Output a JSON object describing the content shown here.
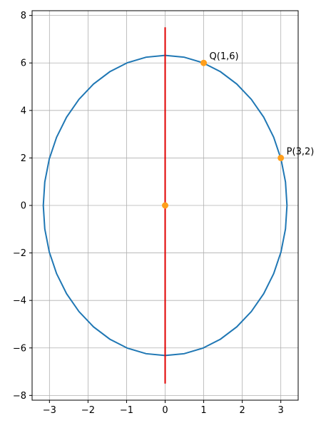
{
  "chart_data": {
    "type": "scatter",
    "title": "",
    "xlabel": "",
    "ylabel": "",
    "xlim": [
      -3.45,
      3.45
    ],
    "ylim": [
      -8.2,
      8.2
    ],
    "grid": true,
    "x_ticks": [
      -3,
      -2,
      -1,
      0,
      1,
      2,
      3
    ],
    "x_tick_labels": [
      "−3",
      "−2",
      "−1",
      "0",
      "1",
      "2",
      "3"
    ],
    "y_ticks": [
      -8,
      -6,
      -4,
      -2,
      0,
      2,
      4,
      6,
      8
    ],
    "y_tick_labels": [
      "−8",
      "−6",
      "−4",
      "−2",
      "0",
      "2",
      "4",
      "6",
      "8"
    ],
    "ellipse": {
      "center": [
        0,
        0
      ],
      "a": 3.16,
      "b": 6.32,
      "color": "#1f77b4"
    },
    "line": {
      "x": [
        0,
        0
      ],
      "y": [
        -7.5,
        7.5
      ],
      "color": "#e00000"
    },
    "points": [
      {
        "x": 0,
        "y": 0,
        "label": "",
        "color": "#ff9f1c"
      },
      {
        "x": 1,
        "y": 6,
        "label": "Q(1,6)",
        "color": "#ff9f1c"
      },
      {
        "x": 3,
        "y": 2,
        "label": "P(3,2)",
        "color": "#ff9f1c"
      }
    ],
    "colors": {
      "axis": "#000000",
      "grid": "#b0b0b0"
    }
  }
}
